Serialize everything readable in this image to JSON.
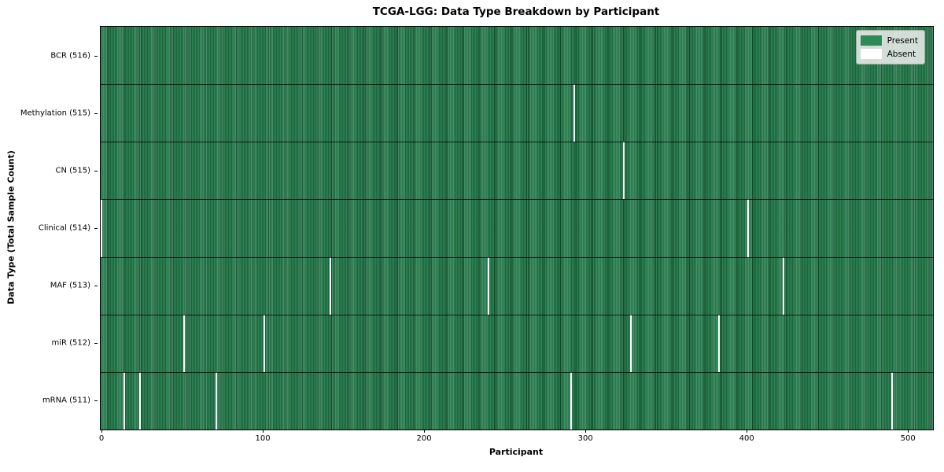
{
  "chart_data": {
    "type": "heatmap",
    "title": "TCGA-LGG: Data Type Breakdown by Participant",
    "xlabel": "Participant",
    "ylabel": "Data Type (Total Sample Count)",
    "x_ticks": [
      0,
      100,
      200,
      300,
      400,
      500
    ],
    "n_participants": 516,
    "grid": false,
    "legend_position": "upper right",
    "legend": [
      {
        "label": "Present",
        "color": "#2e8b57"
      },
      {
        "label": "Absent",
        "color": "#ffffff"
      }
    ],
    "colors": {
      "present": "#2e8b57",
      "present_stripe_dark": "#17492f",
      "absent": "#ffffff",
      "axis": "#000000"
    },
    "rows": [
      {
        "label": "BCR (516)",
        "data_type": "BCR",
        "total": 516,
        "absent_participants": []
      },
      {
        "label": "Methylation (515)",
        "data_type": "Methylation",
        "total": 515,
        "absent_participants": [
          293
        ]
      },
      {
        "label": "CN (515)",
        "data_type": "CN",
        "total": 515,
        "absent_participants": [
          324
        ]
      },
      {
        "label": "Clinical (514)",
        "data_type": "Clinical",
        "total": 514,
        "absent_participants": [
          0,
          401
        ]
      },
      {
        "label": "MAF (513)",
        "data_type": "MAF",
        "total": 513,
        "absent_participants": [
          142,
          240,
          423
        ]
      },
      {
        "label": "miR (512)",
        "data_type": "miR",
        "total": 512,
        "absent_participants": [
          51,
          101,
          328,
          383
        ]
      },
      {
        "label": "mRNA (511)",
        "data_type": "mRNA",
        "total": 511,
        "absent_participants": [
          14,
          24,
          71,
          291,
          490
        ]
      }
    ]
  }
}
